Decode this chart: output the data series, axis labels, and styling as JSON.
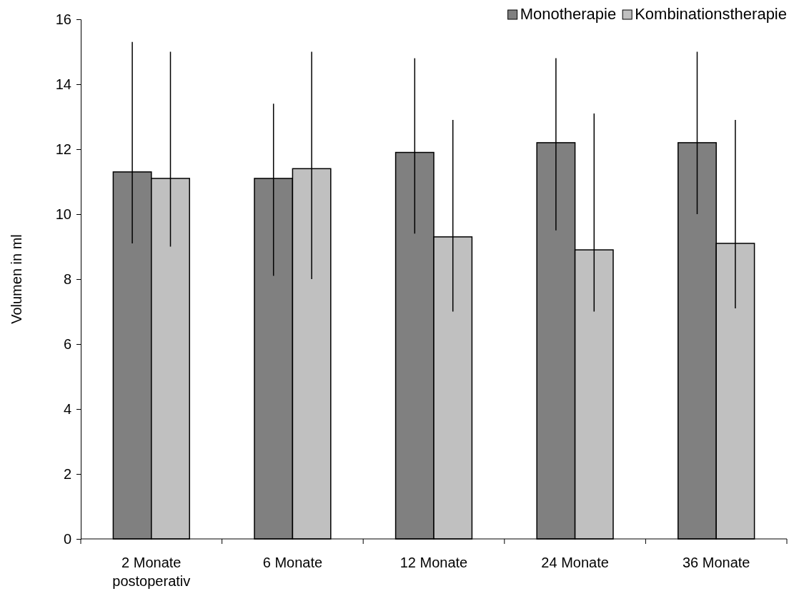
{
  "chart_data": {
    "type": "bar",
    "ylabel": "Volumen in ml",
    "categories": [
      "2 Monate postoperativ",
      "6 Monate",
      "12 Monate",
      "24 Monate",
      "36 Monate"
    ],
    "series": [
      {
        "name": "Monotherapie",
        "color": "#808080",
        "values": [
          11.3,
          11.1,
          11.9,
          12.2,
          12.2
        ],
        "errors": [
          [
            9.1,
            15.3
          ],
          [
            8.1,
            13.4
          ],
          [
            9.4,
            14.8
          ],
          [
            9.5,
            14.8
          ],
          [
            10.0,
            15.0
          ]
        ]
      },
      {
        "name": "Kombinationstherapie",
        "color": "#c0c0c0",
        "values": [
          11.1,
          11.4,
          9.3,
          8.9,
          9.1
        ],
        "errors": [
          [
            9.0,
            15.0
          ],
          [
            8.0,
            15.0
          ],
          [
            7.0,
            12.9
          ],
          [
            7.0,
            13.1
          ],
          [
            7.1,
            12.9
          ]
        ]
      }
    ],
    "ylim": [
      0,
      16
    ],
    "yticks": [
      0,
      2,
      4,
      6,
      8,
      10,
      12,
      14,
      16
    ],
    "grid": false,
    "legend": "top right"
  }
}
